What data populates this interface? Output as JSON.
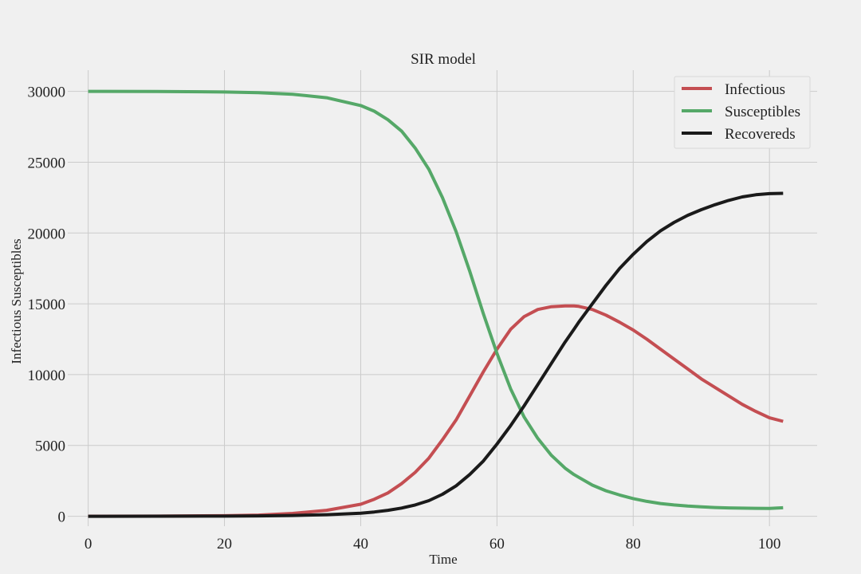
{
  "chart_data": {
    "type": "line",
    "title": "SIR model",
    "xlabel": "Time",
    "ylabel": "Infectious Susceptibles",
    "xlim": [
      -3,
      107
    ],
    "ylim": [
      -700,
      31500
    ],
    "xticks": [
      0,
      20,
      40,
      60,
      80,
      100
    ],
    "xtick_labels": [
      "0",
      "20",
      "40",
      "60",
      "80",
      "100"
    ],
    "yticks": [
      0,
      5000,
      10000,
      15000,
      20000,
      25000,
      30000
    ],
    "ytick_labels": [
      "0",
      "5000",
      "10000",
      "15000",
      "20000",
      "25000",
      "30000"
    ],
    "grid": true,
    "legend_position": "top-right",
    "x": [
      0,
      10,
      20,
      25,
      30,
      35,
      40,
      42,
      44,
      46,
      48,
      50,
      52,
      54,
      56,
      58,
      60,
      62,
      64,
      66,
      68,
      70,
      71.3,
      72,
      74,
      76,
      78,
      80,
      82,
      84,
      86,
      88,
      90,
      92,
      94,
      96,
      98,
      100,
      102
    ],
    "series": [
      {
        "name": "Infectious",
        "color": "#c44e52",
        "values": [
          1,
          8,
          40,
          80,
          200,
          420,
          850,
          1200,
          1650,
          2300,
          3100,
          4100,
          5400,
          6800,
          8500,
          10200,
          11800,
          13200,
          14100,
          14600,
          14800,
          14850,
          14850,
          14820,
          14600,
          14200,
          13700,
          13150,
          12500,
          11800,
          11100,
          10400,
          9700,
          9100,
          8500,
          7900,
          7400,
          6950,
          6700
        ]
      },
      {
        "name": "Susceptibles",
        "color": "#55a868",
        "values": [
          30000,
          29995,
          29960,
          29910,
          29800,
          29550,
          29000,
          28600,
          28000,
          27200,
          26000,
          24500,
          22500,
          20100,
          17300,
          14300,
          11500,
          9000,
          7000,
          5500,
          4300,
          3400,
          2950,
          2750,
          2200,
          1800,
          1500,
          1250,
          1050,
          900,
          800,
          720,
          660,
          620,
          590,
          570,
          560,
          555,
          600
        ]
      },
      {
        "name": "Recovereds",
        "color": "#1a1a1a",
        "values": [
          0,
          2,
          10,
          25,
          55,
          110,
          220,
          300,
          420,
          580,
          800,
          1100,
          1550,
          2150,
          2950,
          3900,
          5100,
          6400,
          7800,
          9300,
          10800,
          12300,
          13200,
          13700,
          15000,
          16300,
          17500,
          18500,
          19400,
          20150,
          20750,
          21250,
          21650,
          22000,
          22300,
          22550,
          22700,
          22780,
          22800
        ]
      }
    ]
  }
}
